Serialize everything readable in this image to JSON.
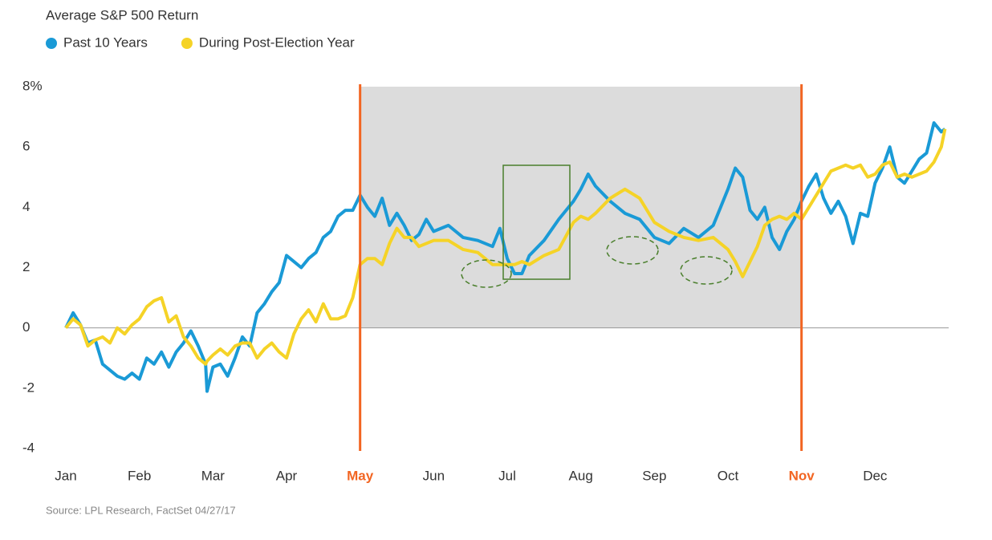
{
  "chart_data": {
    "type": "line",
    "title": "Average S&P 500 Return",
    "source": "Source: LPL Research, FactSet  04/27/17",
    "xlim": [
      0,
      12
    ],
    "xticks": [
      {
        "value": 0,
        "label": "Jan"
      },
      {
        "value": 1,
        "label": "Feb"
      },
      {
        "value": 2,
        "label": "Mar"
      },
      {
        "value": 3,
        "label": "Apr"
      },
      {
        "value": 4,
        "label": "May"
      },
      {
        "value": 5,
        "label": "Jun"
      },
      {
        "value": 6,
        "label": "Jul"
      },
      {
        "value": 7,
        "label": "Aug"
      },
      {
        "value": 8,
        "label": "Sep"
      },
      {
        "value": 9,
        "label": "Oct"
      },
      {
        "value": 10,
        "label": "Nov"
      },
      {
        "value": 11,
        "label": "Dec"
      }
    ],
    "ylim": [
      -4,
      8
    ],
    "yticks": [
      -4,
      -2,
      0,
      2,
      4,
      6,
      {
        "value": 8,
        "label": "8%"
      }
    ],
    "highlight": {
      "range": [
        4,
        10
      ],
      "color": "#f26522",
      "shade": "#dcdcdc"
    },
    "x": [
      0,
      0.1,
      0.2,
      0.3,
      0.4,
      0.5,
      0.6,
      0.7,
      0.8,
      0.9,
      1.0,
      1.1,
      1.2,
      1.3,
      1.4,
      1.5,
      1.6,
      1.7,
      1.8,
      1.9,
      1.92,
      2.0,
      2.1,
      2.2,
      2.3,
      2.4,
      2.5,
      2.6,
      2.7,
      2.8,
      2.9,
      3.0,
      3.1,
      3.2,
      3.3,
      3.4,
      3.5,
      3.6,
      3.7,
      3.8,
      3.9,
      4.0,
      4.1,
      4.2,
      4.3,
      4.4,
      4.5,
      4.6,
      4.7,
      4.8,
      4.9,
      5.0,
      5.2,
      5.4,
      5.6,
      5.8,
      5.9,
      6.0,
      6.1,
      6.2,
      6.3,
      6.5,
      6.7,
      6.9,
      7.0,
      7.1,
      7.2,
      7.4,
      7.6,
      7.8,
      8.0,
      8.2,
      8.4,
      8.6,
      8.8,
      8.9,
      9.0,
      9.1,
      9.2,
      9.3,
      9.4,
      9.5,
      9.6,
      9.7,
      9.8,
      9.9,
      10.0,
      10.1,
      10.2,
      10.3,
      10.4,
      10.5,
      10.6,
      10.7,
      10.8,
      10.9,
      11.0,
      11.1,
      11.2,
      11.3,
      11.4,
      11.5,
      11.6,
      11.7,
      11.8,
      11.9,
      11.95
    ],
    "series": [
      {
        "name": "Past 10 Years",
        "color": "#1a9ad6",
        "values": [
          0,
          0.5,
          0.1,
          -0.5,
          -0.4,
          -1.2,
          -1.4,
          -1.6,
          -1.7,
          -1.5,
          -1.7,
          -1.0,
          -1.2,
          -0.8,
          -1.3,
          -0.8,
          -0.5,
          -0.1,
          -0.6,
          -1.2,
          -2.1,
          -1.3,
          -1.2,
          -1.6,
          -1.0,
          -0.3,
          -0.6,
          0.5,
          0.8,
          1.2,
          1.5,
          2.4,
          2.2,
          2.0,
          2.3,
          2.5,
          3.0,
          3.2,
          3.7,
          3.9,
          3.9,
          4.4,
          4.0,
          3.7,
          4.3,
          3.4,
          3.8,
          3.4,
          2.9,
          3.1,
          3.6,
          3.2,
          3.4,
          3.0,
          2.9,
          2.7,
          3.3,
          2.3,
          1.8,
          1.8,
          2.4,
          2.9,
          3.6,
          4.2,
          4.6,
          5.1,
          4.7,
          4.2,
          3.8,
          3.6,
          3.0,
          2.8,
          3.3,
          3.0,
          3.4,
          4.0,
          4.6,
          5.3,
          5.0,
          3.9,
          3.6,
          4.0,
          3.0,
          2.6,
          3.2,
          3.6,
          4.2,
          4.7,
          5.1,
          4.3,
          3.8,
          4.2,
          3.7,
          2.8,
          3.8,
          3.7,
          4.8,
          5.3,
          6.0,
          5.0,
          4.8,
          5.2,
          5.6,
          5.8,
          6.8,
          6.5,
          6.6
        ]
      },
      {
        "name": "During Post-Election Year",
        "color": "#f5d327",
        "values": [
          0,
          0.3,
          0.1,
          -0.6,
          -0.4,
          -0.3,
          -0.5,
          0.0,
          -0.2,
          0.1,
          0.3,
          0.7,
          0.9,
          1.0,
          0.2,
          0.4,
          -0.3,
          -0.6,
          -1.0,
          -1.2,
          -1.1,
          -0.9,
          -0.7,
          -0.9,
          -0.6,
          -0.5,
          -0.5,
          -1.0,
          -0.7,
          -0.5,
          -0.8,
          -1.0,
          -0.2,
          0.3,
          0.6,
          0.2,
          0.8,
          0.3,
          0.3,
          0.4,
          1.0,
          2.1,
          2.3,
          2.3,
          2.1,
          2.8,
          3.3,
          3.0,
          3.0,
          2.7,
          2.8,
          2.9,
          2.9,
          2.6,
          2.5,
          2.1,
          2.1,
          2.1,
          2.1,
          2.2,
          2.1,
          2.4,
          2.6,
          3.5,
          3.7,
          3.6,
          3.8,
          4.3,
          4.6,
          4.3,
          3.5,
          3.2,
          3.0,
          2.9,
          3.0,
          2.8,
          2.6,
          2.2,
          1.7,
          2.2,
          2.7,
          3.4,
          3.6,
          3.7,
          3.6,
          3.8,
          3.6,
          4.0,
          4.4,
          4.8,
          5.2,
          5.3,
          5.4,
          5.3,
          5.4,
          5.0,
          5.1,
          5.4,
          5.5,
          5.0,
          5.1,
          5.0,
          5.1,
          5.2,
          5.5,
          6.0,
          6.6
        ]
      }
    ]
  }
}
